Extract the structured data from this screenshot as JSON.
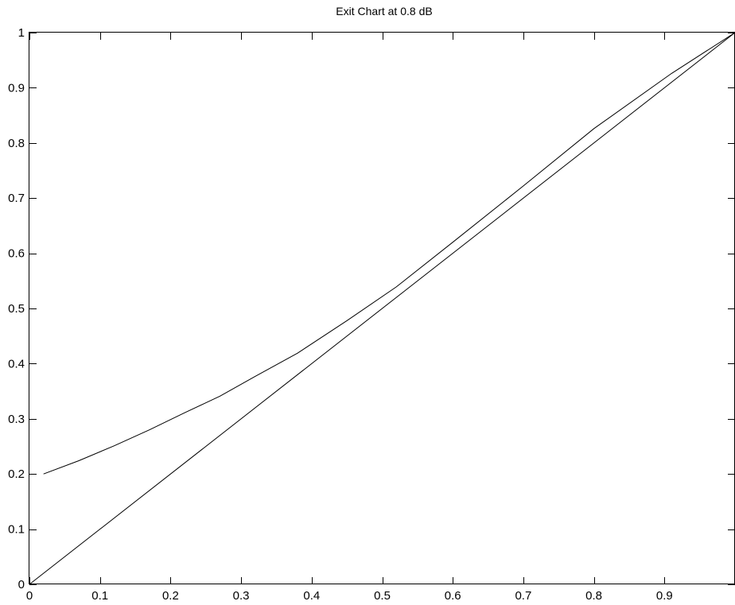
{
  "chart_data": {
    "type": "line",
    "title": "Exit Chart at 0.8 dB",
    "xlabel": "",
    "ylabel": "",
    "xlim": [
      0,
      1
    ],
    "ylim": [
      0,
      1
    ],
    "xticks": [
      "0",
      "0.1",
      "0.2",
      "0.3",
      "0.4",
      "0.5",
      "0.6",
      "0.7",
      "0.8",
      "0.9"
    ],
    "yticks": [
      "0",
      "0.1",
      "0.2",
      "0.3",
      "0.4",
      "0.5",
      "0.6",
      "0.7",
      "0.8",
      "0.9",
      "1"
    ],
    "grid": false,
    "line_color": "#000000",
    "series": [
      {
        "x": [
          0.02,
          0.07,
          0.12,
          0.17,
          0.22,
          0.27,
          0.32,
          0.38,
          0.45,
          0.52,
          0.6,
          0.7,
          0.8,
          0.91,
          1.0
        ],
        "y": [
          0.2,
          0.224,
          0.251,
          0.28,
          0.311,
          0.341,
          0.377,
          0.419,
          0.478,
          0.539,
          0.62,
          0.722,
          0.826,
          0.926,
          1.0
        ]
      },
      {
        "x": [
          0.0,
          1.0
        ],
        "y": [
          0.0,
          1.0
        ]
      }
    ]
  }
}
